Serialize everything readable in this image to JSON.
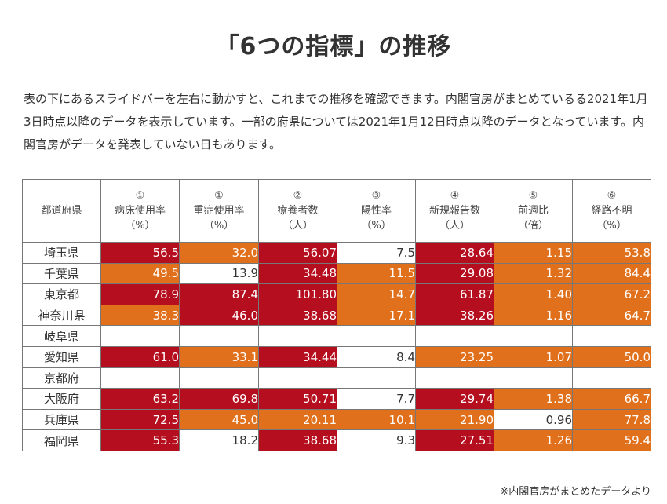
{
  "title": "「6つの指標」の推移",
  "description": "表の下にあるスライドバーを左右に動かすと、これまでの推移を確認できます。内閣官房がまとめているる2021年1月3日時点以降のデータを表示しています。一部の府県については2021年1月12日時点以降のデータとなっています。内閣官房がデータを発表していない日もあります。",
  "table": {
    "columns": [
      {
        "num": "",
        "name": "都道府県",
        "unit": ""
      },
      {
        "num": "①",
        "name": "病床使用率",
        "unit": "（%）"
      },
      {
        "num": "①",
        "name": "重症使用率",
        "unit": "（%）"
      },
      {
        "num": "②",
        "name": "療養者数",
        "unit": "（人）"
      },
      {
        "num": "③",
        "name": "陽性率",
        "unit": "（%）"
      },
      {
        "num": "④",
        "name": "新規報告数",
        "unit": "（人）"
      },
      {
        "num": "⑤",
        "name": "前週比",
        "unit": "（倍）"
      },
      {
        "num": "⑥",
        "name": "経路不明",
        "unit": "（%）"
      }
    ],
    "rows": [
      {
        "pref": "埼玉県",
        "values": [
          "56.5",
          "32.0",
          "56.07",
          "7.5",
          "28.64",
          "1.15",
          "53.8"
        ],
        "levels": [
          "h",
          "m",
          "h",
          "l",
          "h",
          "m",
          "m"
        ]
      },
      {
        "pref": "千葉県",
        "values": [
          "49.5",
          "13.9",
          "34.48",
          "11.5",
          "29.08",
          "1.32",
          "84.4"
        ],
        "levels": [
          "m",
          "l",
          "h",
          "m",
          "h",
          "m",
          "m"
        ]
      },
      {
        "pref": "東京都",
        "values": [
          "78.9",
          "87.4",
          "101.80",
          "14.7",
          "61.87",
          "1.40",
          "67.2"
        ],
        "levels": [
          "h",
          "h",
          "h",
          "m",
          "h",
          "m",
          "m"
        ]
      },
      {
        "pref": "神奈川県",
        "values": [
          "38.3",
          "46.0",
          "38.68",
          "17.1",
          "38.26",
          "1.16",
          "64.7"
        ],
        "levels": [
          "m",
          "h",
          "h",
          "m",
          "h",
          "m",
          "m"
        ]
      },
      {
        "pref": "岐阜県",
        "values": [
          "",
          "",
          "",
          "",
          "",
          "",
          ""
        ],
        "levels": [
          "n",
          "n",
          "n",
          "n",
          "n",
          "n",
          "n"
        ]
      },
      {
        "pref": "愛知県",
        "values": [
          "61.0",
          "33.1",
          "34.44",
          "8.4",
          "23.25",
          "1.07",
          "50.0"
        ],
        "levels": [
          "h",
          "m",
          "h",
          "l",
          "m",
          "m",
          "m"
        ]
      },
      {
        "pref": "京都府",
        "values": [
          "",
          "",
          "",
          "",
          "",
          "",
          ""
        ],
        "levels": [
          "n",
          "n",
          "n",
          "n",
          "n",
          "n",
          "n"
        ]
      },
      {
        "pref": "大阪府",
        "values": [
          "63.2",
          "69.8",
          "50.71",
          "7.7",
          "29.74",
          "1.38",
          "66.7"
        ],
        "levels": [
          "h",
          "h",
          "h",
          "l",
          "h",
          "m",
          "m"
        ]
      },
      {
        "pref": "兵庫県",
        "values": [
          "72.5",
          "45.0",
          "20.11",
          "10.1",
          "21.90",
          "0.96",
          "77.8"
        ],
        "levels": [
          "h",
          "m",
          "m",
          "m",
          "m",
          "l",
          "m"
        ]
      },
      {
        "pref": "福岡県",
        "values": [
          "55.3",
          "18.2",
          "38.68",
          "9.3",
          "27.51",
          "1.26",
          "59.4"
        ],
        "levels": [
          "h",
          "l",
          "h",
          "l",
          "h",
          "m",
          "m"
        ]
      }
    ]
  },
  "colors": {
    "high": "#b50f1f",
    "medium": "#e0701b",
    "low": "#ffffff"
  },
  "footnote": "※内閣官房がまとめたデータより"
}
